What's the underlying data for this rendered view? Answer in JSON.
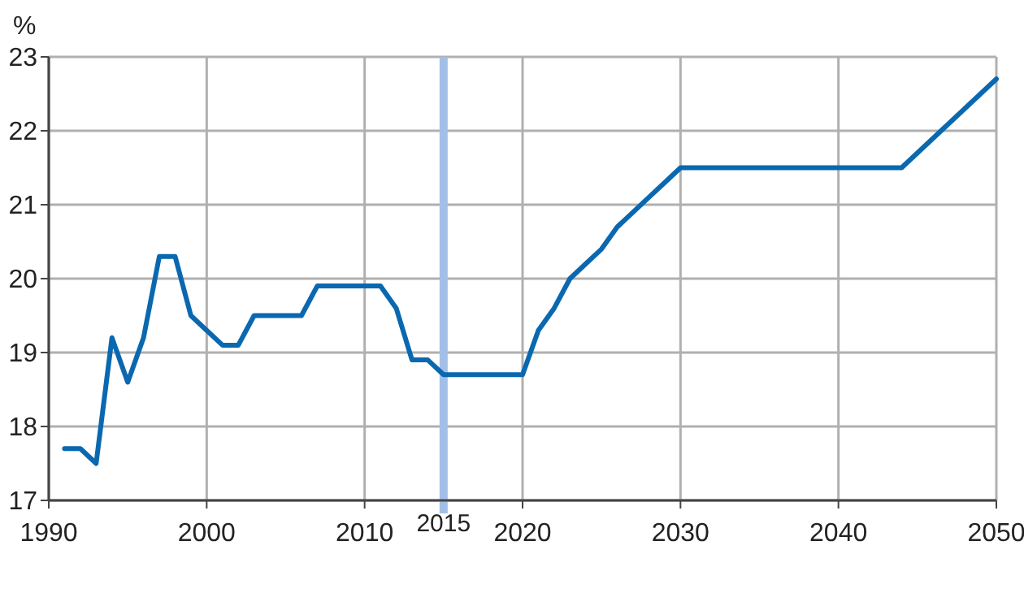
{
  "chart_data": {
    "type": "line",
    "ylabel": "%",
    "x": [
      1991,
      1992,
      1993,
      1994,
      1995,
      1996,
      1997,
      1998,
      1999,
      2000,
      2001,
      2002,
      2003,
      2004,
      2005,
      2006,
      2007,
      2008,
      2009,
      2010,
      2011,
      2012,
      2013,
      2014,
      2015,
      2016,
      2017,
      2018,
      2019,
      2020,
      2021,
      2022,
      2023,
      2024,
      2025,
      2026,
      2027,
      2028,
      2029,
      2030,
      2044,
      2050
    ],
    "series": [
      {
        "color": "#0a68b0",
        "values": [
          17.7,
          17.7,
          17.5,
          19.2,
          18.6,
          19.2,
          20.3,
          20.3,
          19.5,
          19.3,
          19.1,
          19.1,
          19.5,
          19.5,
          19.5,
          19.5,
          19.9,
          19.9,
          19.9,
          19.9,
          19.9,
          19.6,
          18.9,
          18.9,
          18.7,
          18.7,
          18.7,
          18.7,
          18.7,
          18.7,
          19.3,
          19.6,
          20.0,
          20.2,
          20.4,
          20.7,
          20.9,
          21.1,
          21.3,
          21.5,
          21.5,
          22.7
        ]
      }
    ],
    "xlim": [
      1990,
      2050
    ],
    "xticks": [
      1990,
      2000,
      2010,
      2020,
      2030,
      2040,
      2050
    ],
    "ylim": [
      17,
      23
    ],
    "yticks": [
      17,
      18,
      19,
      20,
      21,
      22,
      23
    ],
    "grid": true,
    "marker": "none",
    "line_style": "solid",
    "ref_lines": [
      {
        "axis": "x",
        "value": 2015,
        "label": "2015",
        "color": "#a3bfe8"
      }
    ]
  }
}
